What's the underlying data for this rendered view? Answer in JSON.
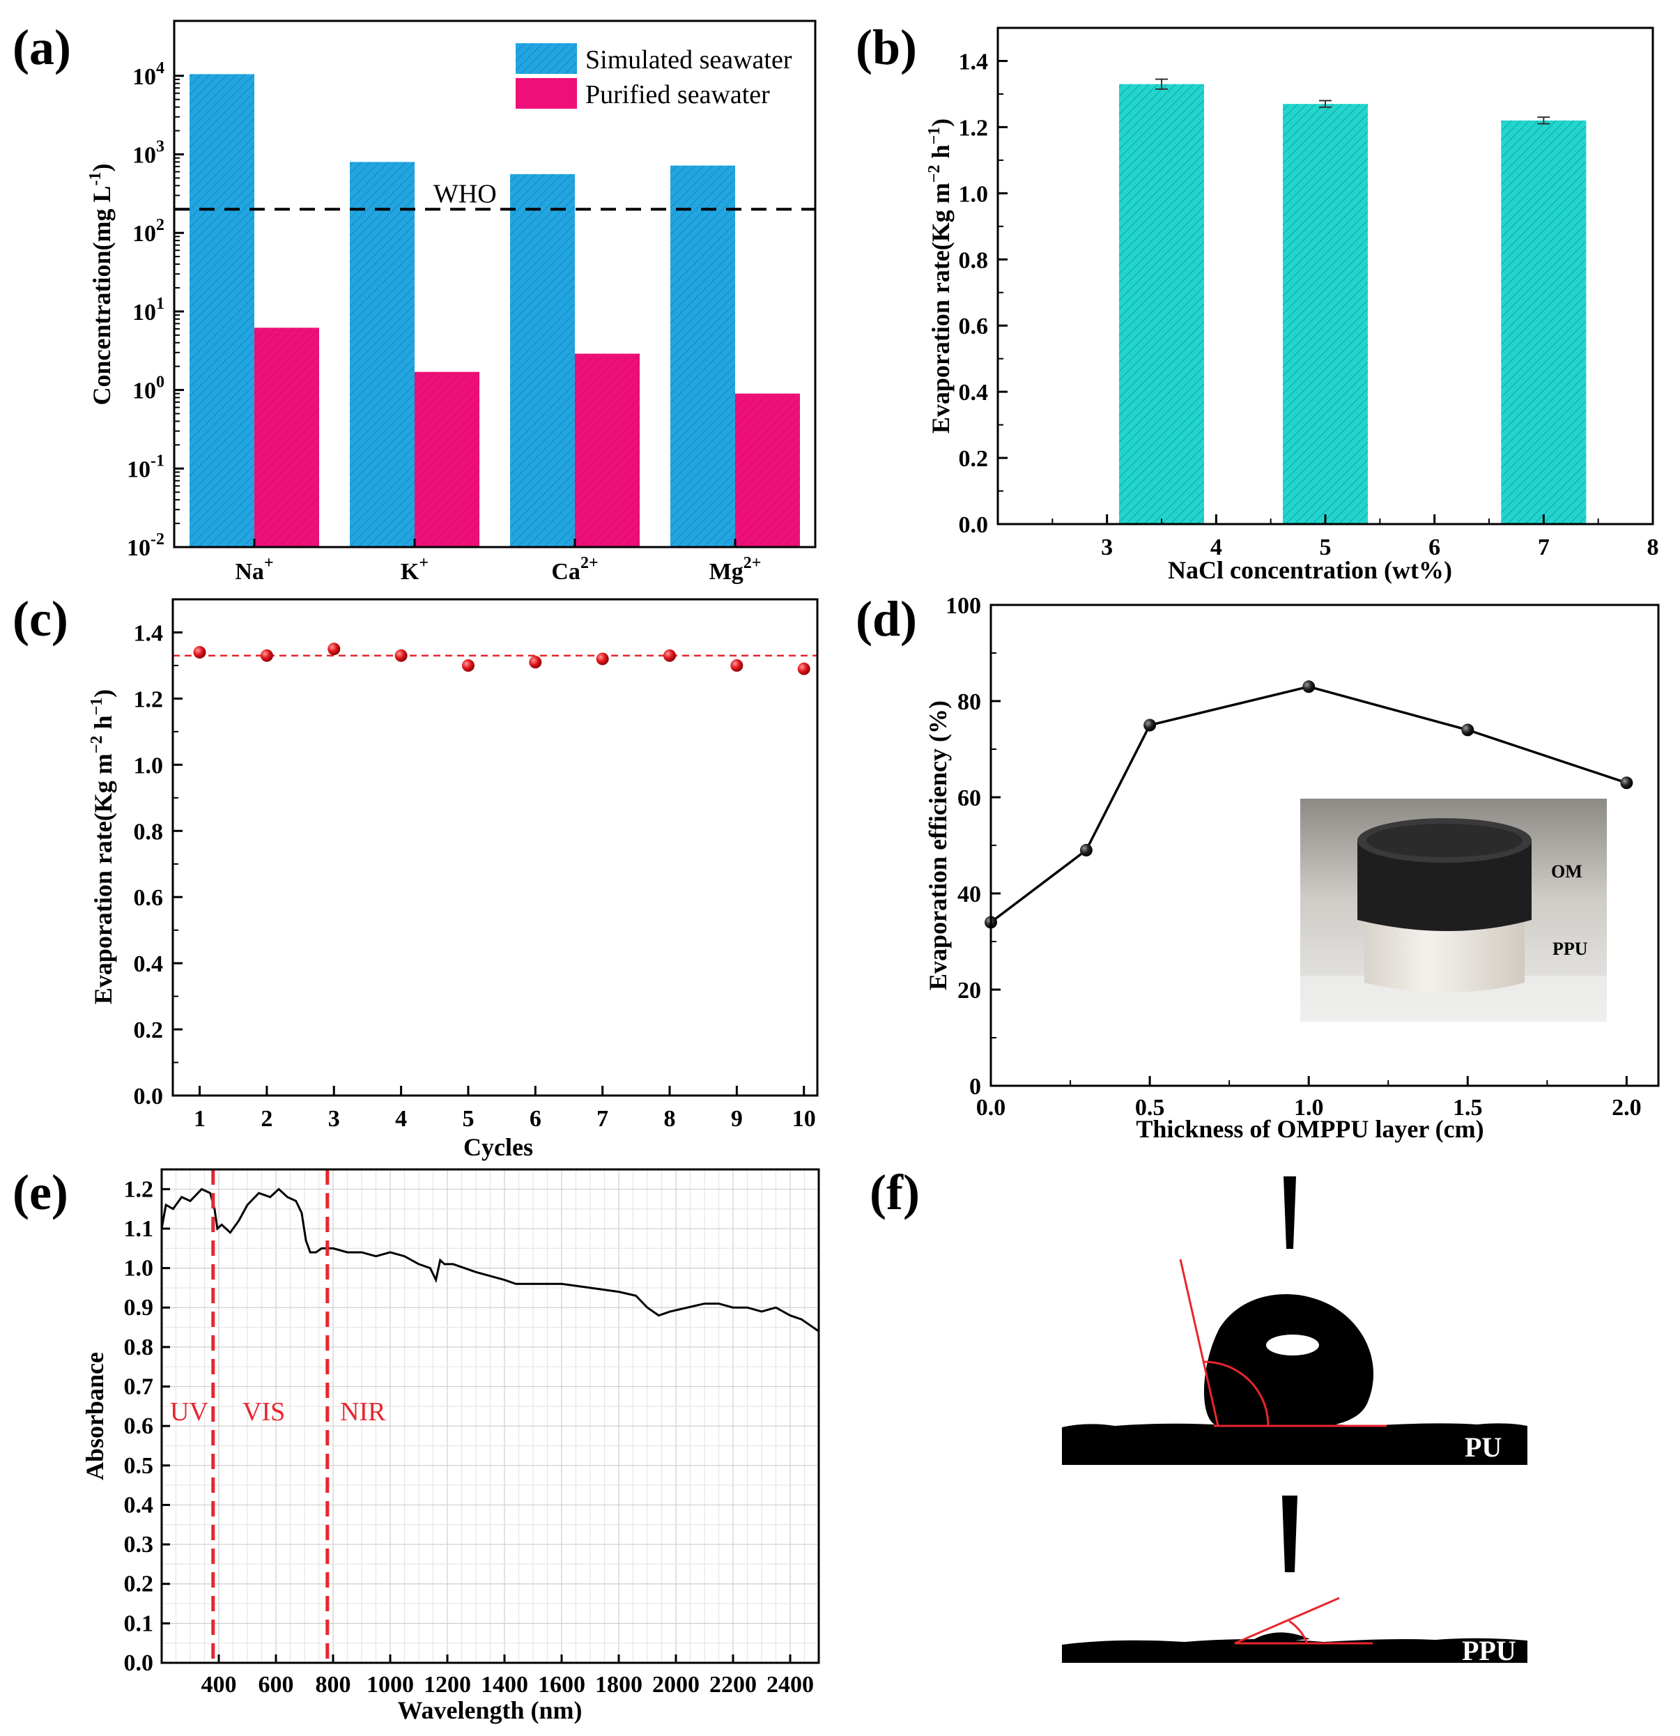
{
  "panels": {
    "a": {
      "label": "(a)",
      "chart_data": {
        "type": "bar",
        "scale": "log",
        "categories": [
          "Na",
          "K",
          "Ca",
          "Mg"
        ],
        "category_superscripts": [
          "+",
          "+",
          "2+",
          "2+"
        ],
        "series": [
          {
            "name": "Simulated seawater",
            "values": [
              10500,
              800,
              560,
              720
            ],
            "color": "#22a6e2"
          },
          {
            "name": "Purified seawater",
            "values": [
              6.2,
              1.7,
              2.9,
              0.9
            ],
            "color": "#ee0f78"
          }
        ],
        "reference_line": {
          "value": 200,
          "label": "WHO"
        },
        "ylim": [
          0.01,
          50000
        ],
        "ytick_exponents": [
          "-2",
          "-1",
          "0",
          "1",
          "2",
          "3",
          "4"
        ],
        "ytick_base": "10",
        "ylabel": "Concentration(mg L",
        "ylabel_sup": "-1",
        "ylabel_end": ")",
        "legend_position": "top-right"
      }
    },
    "b": {
      "label": "(b)",
      "chart_data": {
        "type": "bar",
        "x": [
          3.5,
          5,
          7
        ],
        "values": [
          1.33,
          1.27,
          1.22
        ],
        "errors": [
          0.015,
          0.01,
          0.01
        ],
        "color": "#22d6cf",
        "xlim": [
          2,
          8
        ],
        "ylim": [
          0,
          1.5
        ],
        "xticks": [
          "3",
          "4",
          "5",
          "6",
          "7",
          "8"
        ],
        "yticks": [
          "0.0",
          "0.2",
          "0.4",
          "0.6",
          "0.8",
          "1.0",
          "1.2",
          "1.4"
        ],
        "xlabel": "NaCl concentration (wt%)",
        "ylabel": "Evaporation rate(Kg m",
        "ylabel_sup1": "−2",
        "ylabel_mid": " h",
        "ylabel_sup2": "−1",
        "ylabel_end": ")"
      }
    },
    "c": {
      "label": "(c)",
      "chart_data": {
        "type": "scatter",
        "x": [
          1,
          2,
          3,
          4,
          5,
          6,
          7,
          8,
          9,
          10
        ],
        "y": [
          1.34,
          1.33,
          1.35,
          1.33,
          1.3,
          1.31,
          1.32,
          1.33,
          1.3,
          1.29
        ],
        "reference_line": 1.33,
        "color": "#e8262e",
        "xlim": [
          0.6,
          10.2
        ],
        "ylim": [
          0,
          1.5
        ],
        "xticks": [
          "1",
          "2",
          "3",
          "4",
          "5",
          "6",
          "7",
          "8",
          "9",
          "10"
        ],
        "yticks": [
          "0.0",
          "0.2",
          "0.4",
          "0.6",
          "0.8",
          "1.0",
          "1.2",
          "1.4"
        ],
        "xlabel": "Cycles",
        "ylabel": "Evaporation rate(Kg m",
        "ylabel_sup1": "−2",
        "ylabel_mid": " h",
        "ylabel_sup2": "−1",
        "ylabel_end": ")"
      }
    },
    "d": {
      "label": "(d)",
      "chart_data": {
        "type": "line",
        "x": [
          0.0,
          0.3,
          0.5,
          1.0,
          1.5,
          2.0
        ],
        "y": [
          34,
          49,
          75,
          83,
          74,
          63
        ],
        "xlim": [
          0,
          2.1
        ],
        "ylim": [
          0,
          100
        ],
        "xticks": [
          "0.0",
          "0.5",
          "1.0",
          "1.5",
          "2.0"
        ],
        "yticks": [
          "0",
          "20",
          "40",
          "60",
          "80",
          "100"
        ],
        "xlabel": "Thickness of OMPPU layer (cm)",
        "ylabel": "Evaporation efficiency (%)",
        "inset_labels": [
          "OM",
          "PPU"
        ]
      }
    },
    "e": {
      "label": "(e)",
      "chart_data": {
        "type": "line",
        "x": [
          200,
          215,
          240,
          270,
          300,
          340,
          370,
          385,
          395,
          410,
          440,
          470,
          500,
          540,
          580,
          610,
          640,
          670,
          690,
          705,
          720,
          740,
          760,
          800,
          850,
          900,
          950,
          1000,
          1050,
          1100,
          1140,
          1160,
          1175,
          1190,
          1220,
          1260,
          1300,
          1350,
          1400,
          1440,
          1500,
          1600,
          1700,
          1800,
          1860,
          1900,
          1940,
          1980,
          2040,
          2100,
          2150,
          2200,
          2250,
          2300,
          2350,
          2400,
          2440,
          2480,
          2500
        ],
        "y": [
          1.1,
          1.16,
          1.15,
          1.18,
          1.17,
          1.2,
          1.19,
          1.15,
          1.1,
          1.11,
          1.09,
          1.12,
          1.16,
          1.19,
          1.18,
          1.2,
          1.18,
          1.17,
          1.14,
          1.07,
          1.04,
          1.04,
          1.05,
          1.05,
          1.04,
          1.04,
          1.03,
          1.04,
          1.03,
          1.01,
          1.0,
          0.97,
          1.02,
          1.01,
          1.01,
          1.0,
          0.99,
          0.98,
          0.97,
          0.96,
          0.96,
          0.96,
          0.95,
          0.94,
          0.93,
          0.9,
          0.88,
          0.89,
          0.9,
          0.91,
          0.91,
          0.9,
          0.9,
          0.89,
          0.9,
          0.88,
          0.87,
          0.85,
          0.84
        ],
        "xlim": [
          200,
          2500
        ],
        "ylim": [
          0,
          1.25
        ],
        "xticks": [
          "400",
          "600",
          "800",
          "1000",
          "1200",
          "1400",
          "1600",
          "1800",
          "2000",
          "2200",
          "2400"
        ],
        "yticks": [
          "0.0",
          "0.1",
          "0.2",
          "0.3",
          "0.4",
          "0.5",
          "0.6",
          "0.7",
          "0.8",
          "0.9",
          "1.0",
          "1.1",
          "1.2"
        ],
        "region_lines": [
          380,
          780
        ],
        "region_labels": [
          "UV",
          "VIS",
          "NIR"
        ],
        "xlabel": "Wavelength (nm)",
        "ylabel": "Absorbance",
        "grid": true
      }
    },
    "f": {
      "label": "(f)",
      "images": [
        "PU",
        "PPU"
      ]
    }
  }
}
